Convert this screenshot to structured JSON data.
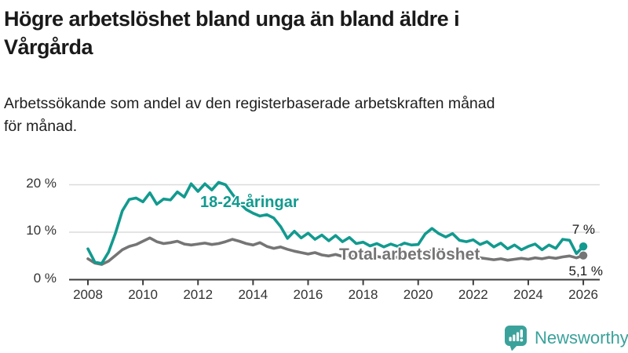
{
  "header": {
    "title": "Högre arbetslöshet bland unga än bland äldre i Vårgårda",
    "title_lines": [
      "Högre arbetslöshet bland unga än bland äldre i",
      "Vårgårda"
    ],
    "subtitle": "Arbetssökande som andel av den registerbaserade arbetskraften månad för månad.",
    "subtitle_lines": [
      "Arbetssökande som andel av den registerbaserade arbetskraften månad",
      "för månad."
    ]
  },
  "chart_data": {
    "type": "line",
    "title": "Arbetssökande som andel av den registerbaserade arbetskraften månad för månad",
    "x_start": 2008,
    "x_step": 0.25,
    "x_ticks": [
      2008,
      2010,
      2012,
      2014,
      2016,
      2018,
      2020,
      2022,
      2024,
      2026
    ],
    "y_ticks": [
      0,
      10,
      20
    ],
    "y_tick_labels": [
      "0 %",
      "10 %",
      "20 %"
    ],
    "ylim": [
      0,
      22
    ],
    "xlim": [
      2007.3,
      2026.6
    ],
    "grid": "horizontal",
    "grid_color": "#dbdbdb",
    "axis_color": "#3d3d3d",
    "series": [
      {
        "name": "18-24-åringar",
        "color": "#129a8f",
        "end_label": "7 %",
        "end_value": 7.0,
        "values": [
          6.5,
          3.7,
          3.4,
          5.8,
          9.8,
          14.5,
          16.9,
          17.2,
          16.4,
          18.3,
          15.9,
          17.0,
          16.8,
          18.5,
          17.4,
          20.2,
          18.6,
          20.2,
          18.9,
          20.5,
          20.0,
          18.0,
          16.2,
          14.8,
          14.0,
          13.4,
          13.7,
          13.0,
          11.2,
          8.7,
          10.2,
          8.8,
          9.8,
          8.5,
          9.4,
          8.2,
          9.3,
          8.0,
          8.9,
          7.6,
          7.9,
          7.1,
          7.6,
          6.9,
          7.5,
          7.0,
          7.7,
          7.3,
          7.4,
          9.6,
          10.8,
          9.7,
          9.0,
          9.7,
          8.3,
          8.0,
          8.4,
          7.4,
          8.0,
          6.9,
          7.7,
          6.5,
          7.3,
          6.3,
          7.0,
          7.5,
          6.3,
          7.3,
          6.6,
          8.5,
          8.3,
          5.5,
          7.0
        ]
      },
      {
        "name": "Total arbetslöshet",
        "color": "#757575",
        "end_label": "5,1 %",
        "end_value": 5.1,
        "values": [
          4.4,
          3.5,
          3.2,
          3.9,
          5.1,
          6.3,
          7.0,
          7.4,
          8.1,
          8.8,
          8.0,
          7.6,
          7.8,
          8.1,
          7.5,
          7.3,
          7.5,
          7.7,
          7.4,
          7.6,
          8.0,
          8.5,
          8.1,
          7.6,
          7.3,
          7.8,
          7.0,
          6.6,
          6.9,
          6.4,
          6.0,
          5.7,
          5.4,
          5.7,
          5.2,
          5.0,
          5.3,
          4.9,
          5.1,
          4.8,
          5.0,
          4.7,
          4.9,
          4.6,
          4.8,
          4.7,
          4.9,
          5.0,
          5.2,
          5.8,
          6.1,
          5.7,
          5.5,
          5.3,
          5.0,
          4.8,
          4.9,
          4.6,
          4.4,
          4.2,
          4.4,
          4.1,
          4.3,
          4.5,
          4.3,
          4.6,
          4.4,
          4.7,
          4.5,
          4.8,
          5.0,
          4.6,
          5.1
        ]
      }
    ]
  },
  "footer": {
    "brand": "Newsworthy",
    "logo_icon": "bar-chart-speech-bubble-icon",
    "brand_color": "#3aa29b"
  }
}
